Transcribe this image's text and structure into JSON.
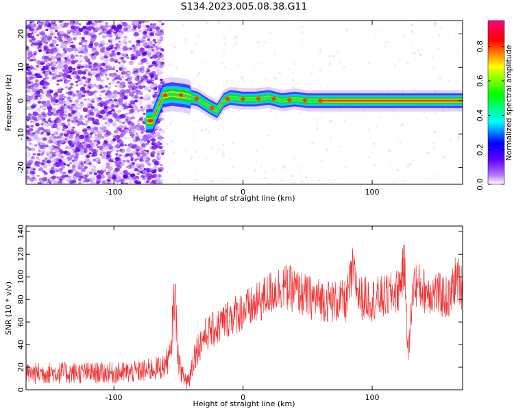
{
  "title": "S134.2023.005.08.38.G11",
  "chart_data": [
    {
      "type": "heatmap",
      "xlabel": "Height of straight line (km)",
      "ylabel": "Frequency (Hz)",
      "xlim": [
        -168,
        170
      ],
      "ylim": [
        -25,
        24
      ],
      "xticks": [
        -100,
        0,
        100
      ],
      "yticks": [
        -20,
        -10,
        0,
        10,
        20
      ],
      "grid": false,
      "colorbar": {
        "label": "Normalized spectral amplitude",
        "range": [
          0.0,
          0.95
        ],
        "ticks": [
          0.0,
          0.2,
          0.4,
          0.6,
          0.8
        ],
        "colors": [
          "#ffffff",
          "#8000ff",
          "#0000ff",
          "#00ffff",
          "#00ff00",
          "#ffff00",
          "#ff0000",
          "#ff0080"
        ]
      },
      "ridge": {
        "x": [
          -70,
          -62,
          -55,
          -45,
          -35,
          -25,
          -20,
          -15,
          -10,
          0,
          10,
          20,
          30,
          40,
          50,
          60,
          100,
          170
        ],
        "y": [
          -6,
          1.5,
          2,
          1.5,
          0.5,
          -2,
          -3,
          0,
          1,
          0.5,
          0.5,
          1,
          0,
          0.5,
          0,
          0,
          0,
          0
        ]
      }
    },
    {
      "type": "line",
      "xlabel": "Height of straight line (km)",
      "ylabel": "SNR (10 * v/v)",
      "xlim": [
        -168,
        170
      ],
      "ylim": [
        0,
        145
      ],
      "xticks": [
        -100,
        0,
        100
      ],
      "yticks": [
        0,
        20,
        40,
        60,
        80,
        100,
        120,
        140
      ],
      "grid": false,
      "series": [
        {
          "color": "#ee3333",
          "x": [
            -168,
            -150,
            -130,
            -110,
            -90,
            -75,
            -62,
            -56,
            -53,
            -50,
            -46,
            -42,
            -38,
            -30,
            -20,
            -10,
            0,
            10,
            20,
            30,
            40,
            50,
            60,
            70,
            80,
            85,
            90,
            100,
            110,
            120,
            125,
            128,
            132,
            140,
            150,
            160,
            165,
            170
          ],
          "y": [
            14,
            15,
            15,
            15,
            15,
            17,
            20,
            30,
            90,
            25,
            10,
            8,
            30,
            48,
            55,
            65,
            70,
            75,
            85,
            92,
            88,
            82,
            80,
            78,
            78,
            105,
            82,
            80,
            82,
            88,
            110,
            30,
            95,
            88,
            85,
            80,
            100,
            90
          ]
        }
      ]
    }
  ]
}
